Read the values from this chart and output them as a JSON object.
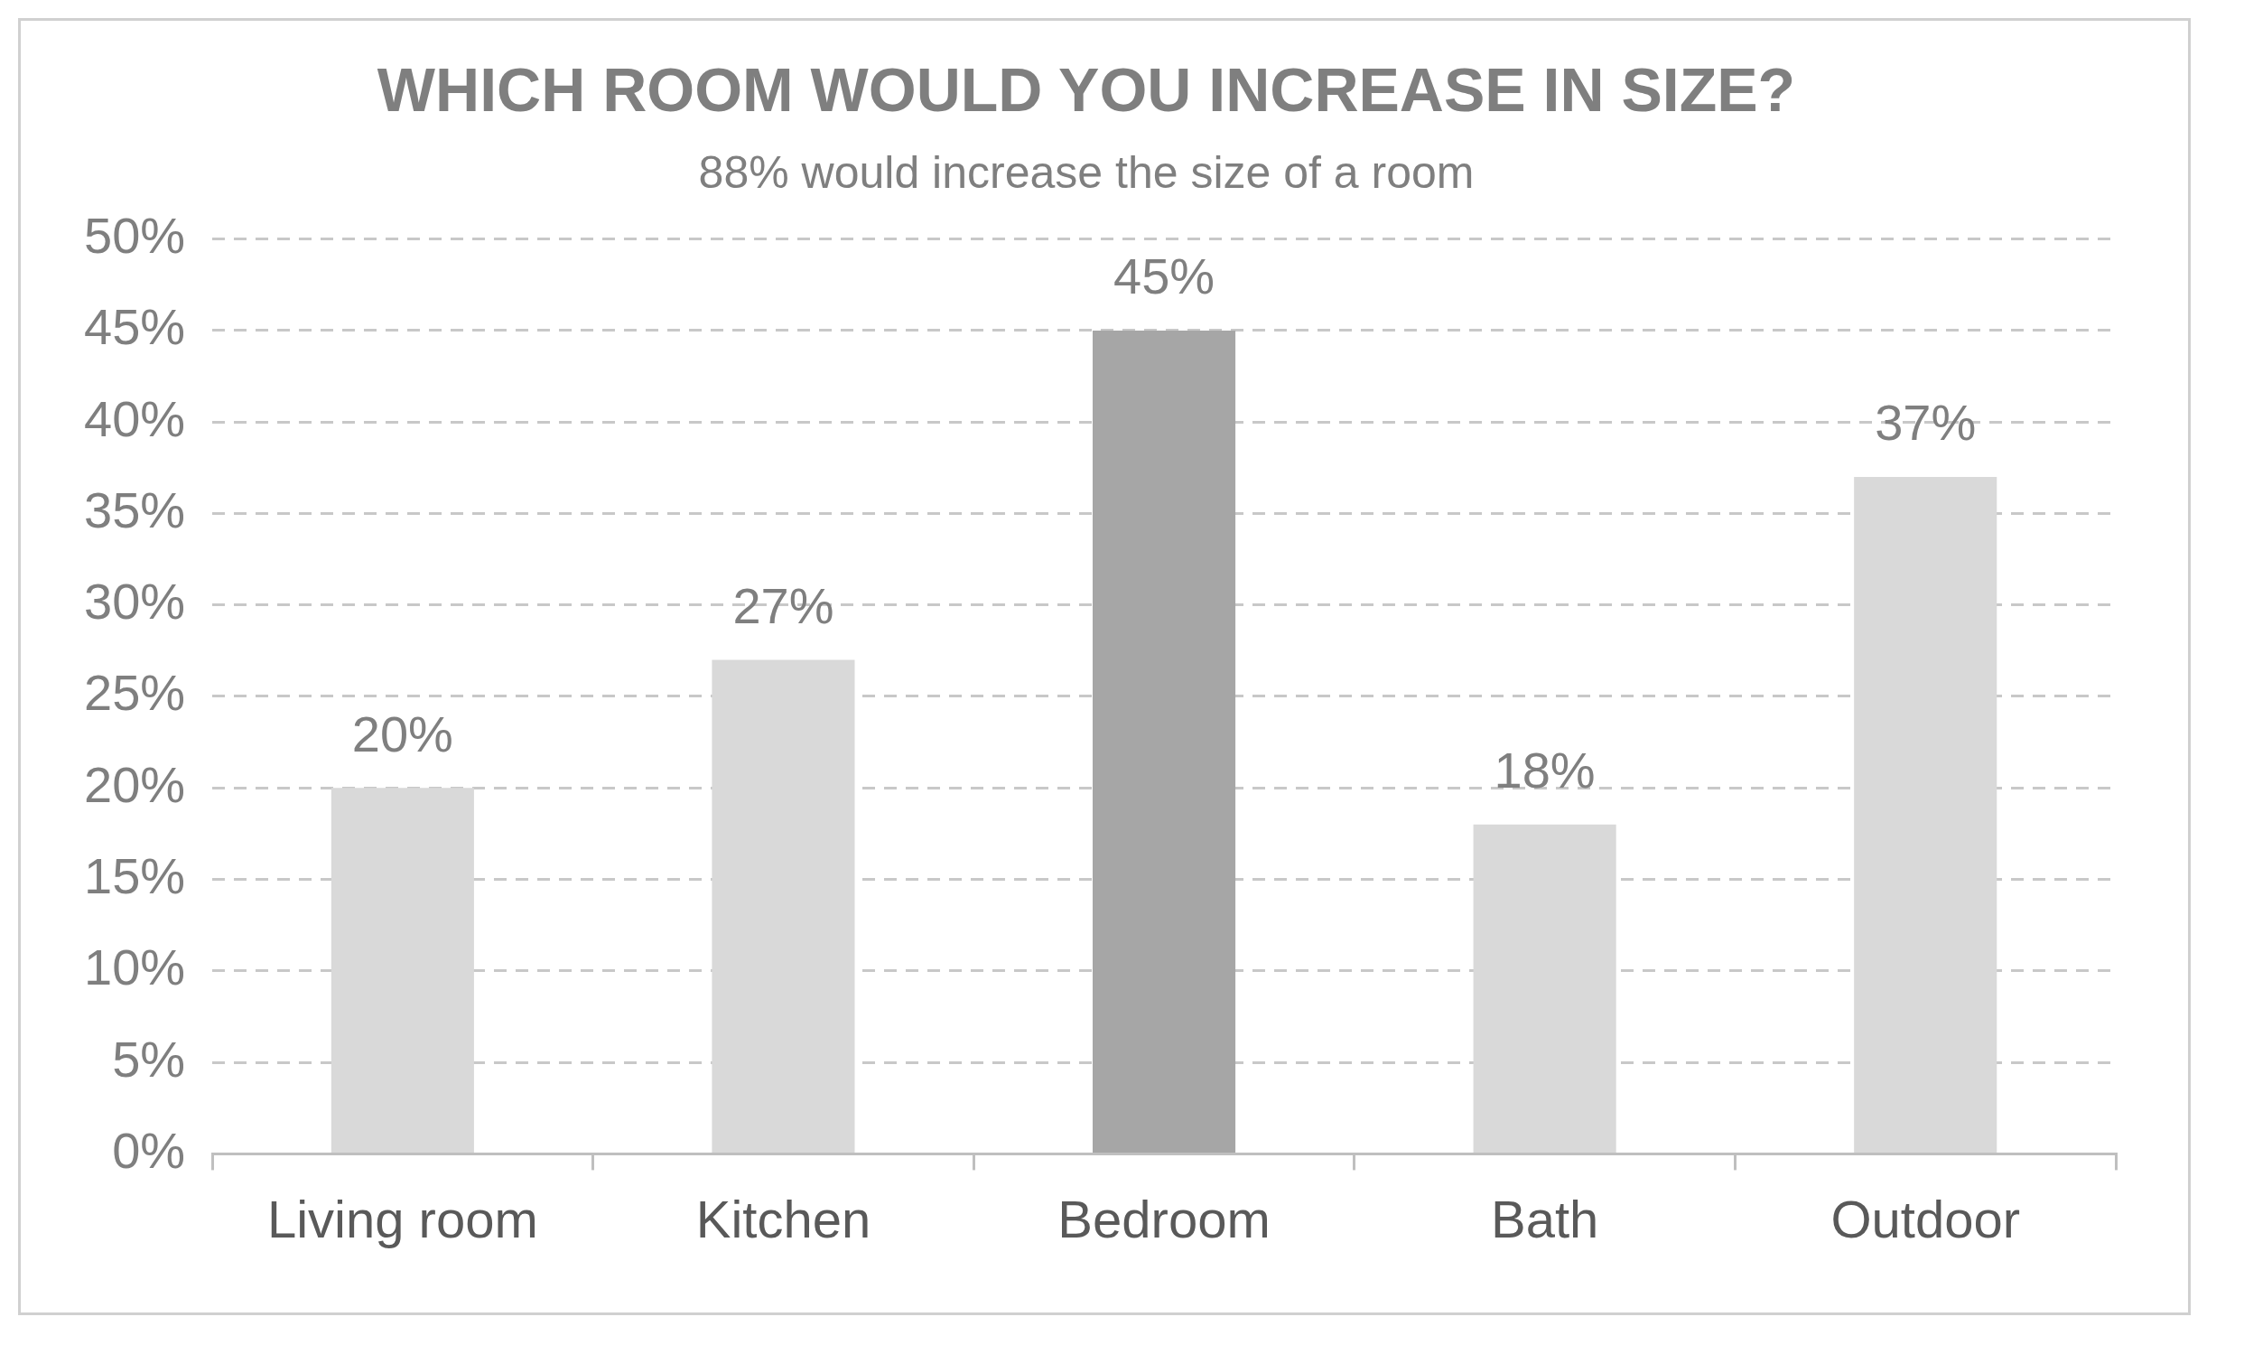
{
  "chart_data": {
    "type": "bar",
    "title": "WHICH ROOM WOULD YOU INCREASE IN SIZE?",
    "subtitle": "88% would increase the size of a room",
    "categories": [
      "Living room",
      "Kitchen",
      "Bedroom",
      "Bath",
      "Outdoor"
    ],
    "values": [
      20,
      27,
      45,
      18,
      37
    ],
    "colors": [
      "#d9d9d9",
      "#d9d9d9",
      "#a6a6a6",
      "#d9d9d9",
      "#d9d9d9"
    ],
    "value_labels": [
      "20%",
      "27%",
      "45%",
      "18%",
      "37%"
    ],
    "ylim": [
      0,
      50
    ],
    "yticks": [
      {
        "value": 0,
        "label": "0%"
      },
      {
        "value": 5,
        "label": "5%"
      },
      {
        "value": 10,
        "label": "10%"
      },
      {
        "value": 15,
        "label": "15%"
      },
      {
        "value": 20,
        "label": "20%"
      },
      {
        "value": 25,
        "label": "25%"
      },
      {
        "value": 30,
        "label": "30%"
      },
      {
        "value": 35,
        "label": "35%"
      },
      {
        "value": 40,
        "label": "40%"
      },
      {
        "value": 45,
        "label": "45%"
      },
      {
        "value": 50,
        "label": "50%"
      }
    ],
    "grid": "y",
    "legend": false
  }
}
